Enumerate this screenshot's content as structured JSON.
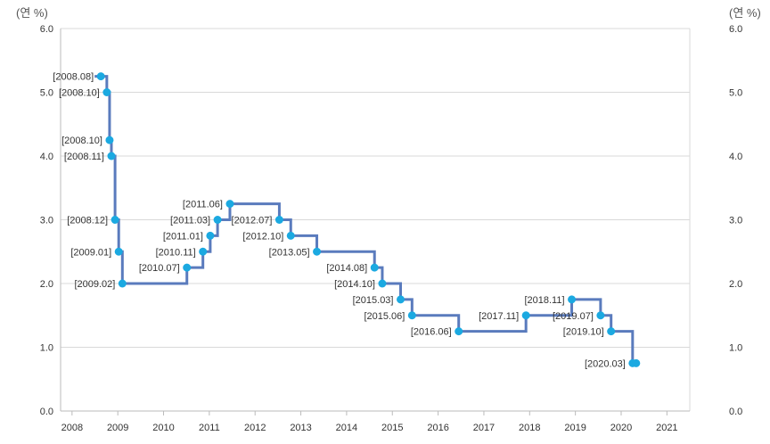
{
  "chart_data": {
    "type": "line",
    "step": true,
    "y_unit_left": "(연 %)",
    "y_unit_right": "(연 %)",
    "ylim": [
      0,
      6.0
    ],
    "y_ticks": [
      "0.0",
      "1.0",
      "2.0",
      "3.0",
      "4.0",
      "5.0",
      "6.0"
    ],
    "x_ticks": [
      "2008",
      "2009",
      "2010",
      "2011",
      "2012",
      "2013",
      "2014",
      "2015",
      "2016",
      "2017",
      "2018",
      "2019",
      "2020",
      "2021"
    ],
    "xlim": [
      2007.75,
      2021.5
    ],
    "grid": true,
    "colors": {
      "line": "#5a7bbd",
      "marker": "#1ba9e1",
      "grid": "#d9d9d9",
      "axis": "#bbbbbb"
    },
    "series": [
      {
        "points": [
          {
            "label": "[2008.08]",
            "x": 2008.63,
            "y": 5.25
          },
          {
            "label": "[2008.10]",
            "x": 2008.76,
            "y": 5.0
          },
          {
            "label": "[2008.10]",
            "x": 2008.82,
            "y": 4.25
          },
          {
            "label": "[2008.11]",
            "x": 2008.86,
            "y": 4.0
          },
          {
            "label": "[2008.12]",
            "x": 2008.94,
            "y": 3.0
          },
          {
            "label": "[2009.01]",
            "x": 2009.02,
            "y": 2.5
          },
          {
            "label": "[2009.02]",
            "x": 2009.1,
            "y": 2.0
          },
          {
            "label": "[2010.07]",
            "x": 2010.51,
            "y": 2.25
          },
          {
            "label": "[2010.11]",
            "x": 2010.86,
            "y": 2.5
          },
          {
            "label": "[2011.01]",
            "x": 2011.02,
            "y": 2.75
          },
          {
            "label": "[2011.03]",
            "x": 2011.18,
            "y": 3.0
          },
          {
            "label": "[2011.06]",
            "x": 2011.45,
            "y": 3.25
          },
          {
            "label": "[2012.07]",
            "x": 2012.53,
            "y": 3.0
          },
          {
            "label": "[2012.10]",
            "x": 2012.78,
            "y": 2.75
          },
          {
            "label": "[2013.05]",
            "x": 2013.35,
            "y": 2.5
          },
          {
            "label": "[2014.08]",
            "x": 2014.61,
            "y": 2.25
          },
          {
            "label": "[2014.10]",
            "x": 2014.78,
            "y": 2.0
          },
          {
            "label": "[2015.03]",
            "x": 2015.18,
            "y": 1.75
          },
          {
            "label": "[2015.06]",
            "x": 2015.43,
            "y": 1.5
          },
          {
            "label": "[2016.06]",
            "x": 2016.45,
            "y": 1.25
          },
          {
            "label": "[2017.11]",
            "x": 2017.92,
            "y": 1.5
          },
          {
            "label": "[2018.11]",
            "x": 2018.92,
            "y": 1.75
          },
          {
            "label": "[2019.07]",
            "x": 2019.55,
            "y": 1.5
          },
          {
            "label": "[2019.10]",
            "x": 2019.78,
            "y": 1.25
          },
          {
            "label": "[2020.03]",
            "x": 2020.25,
            "y": 0.75
          }
        ]
      }
    ]
  }
}
